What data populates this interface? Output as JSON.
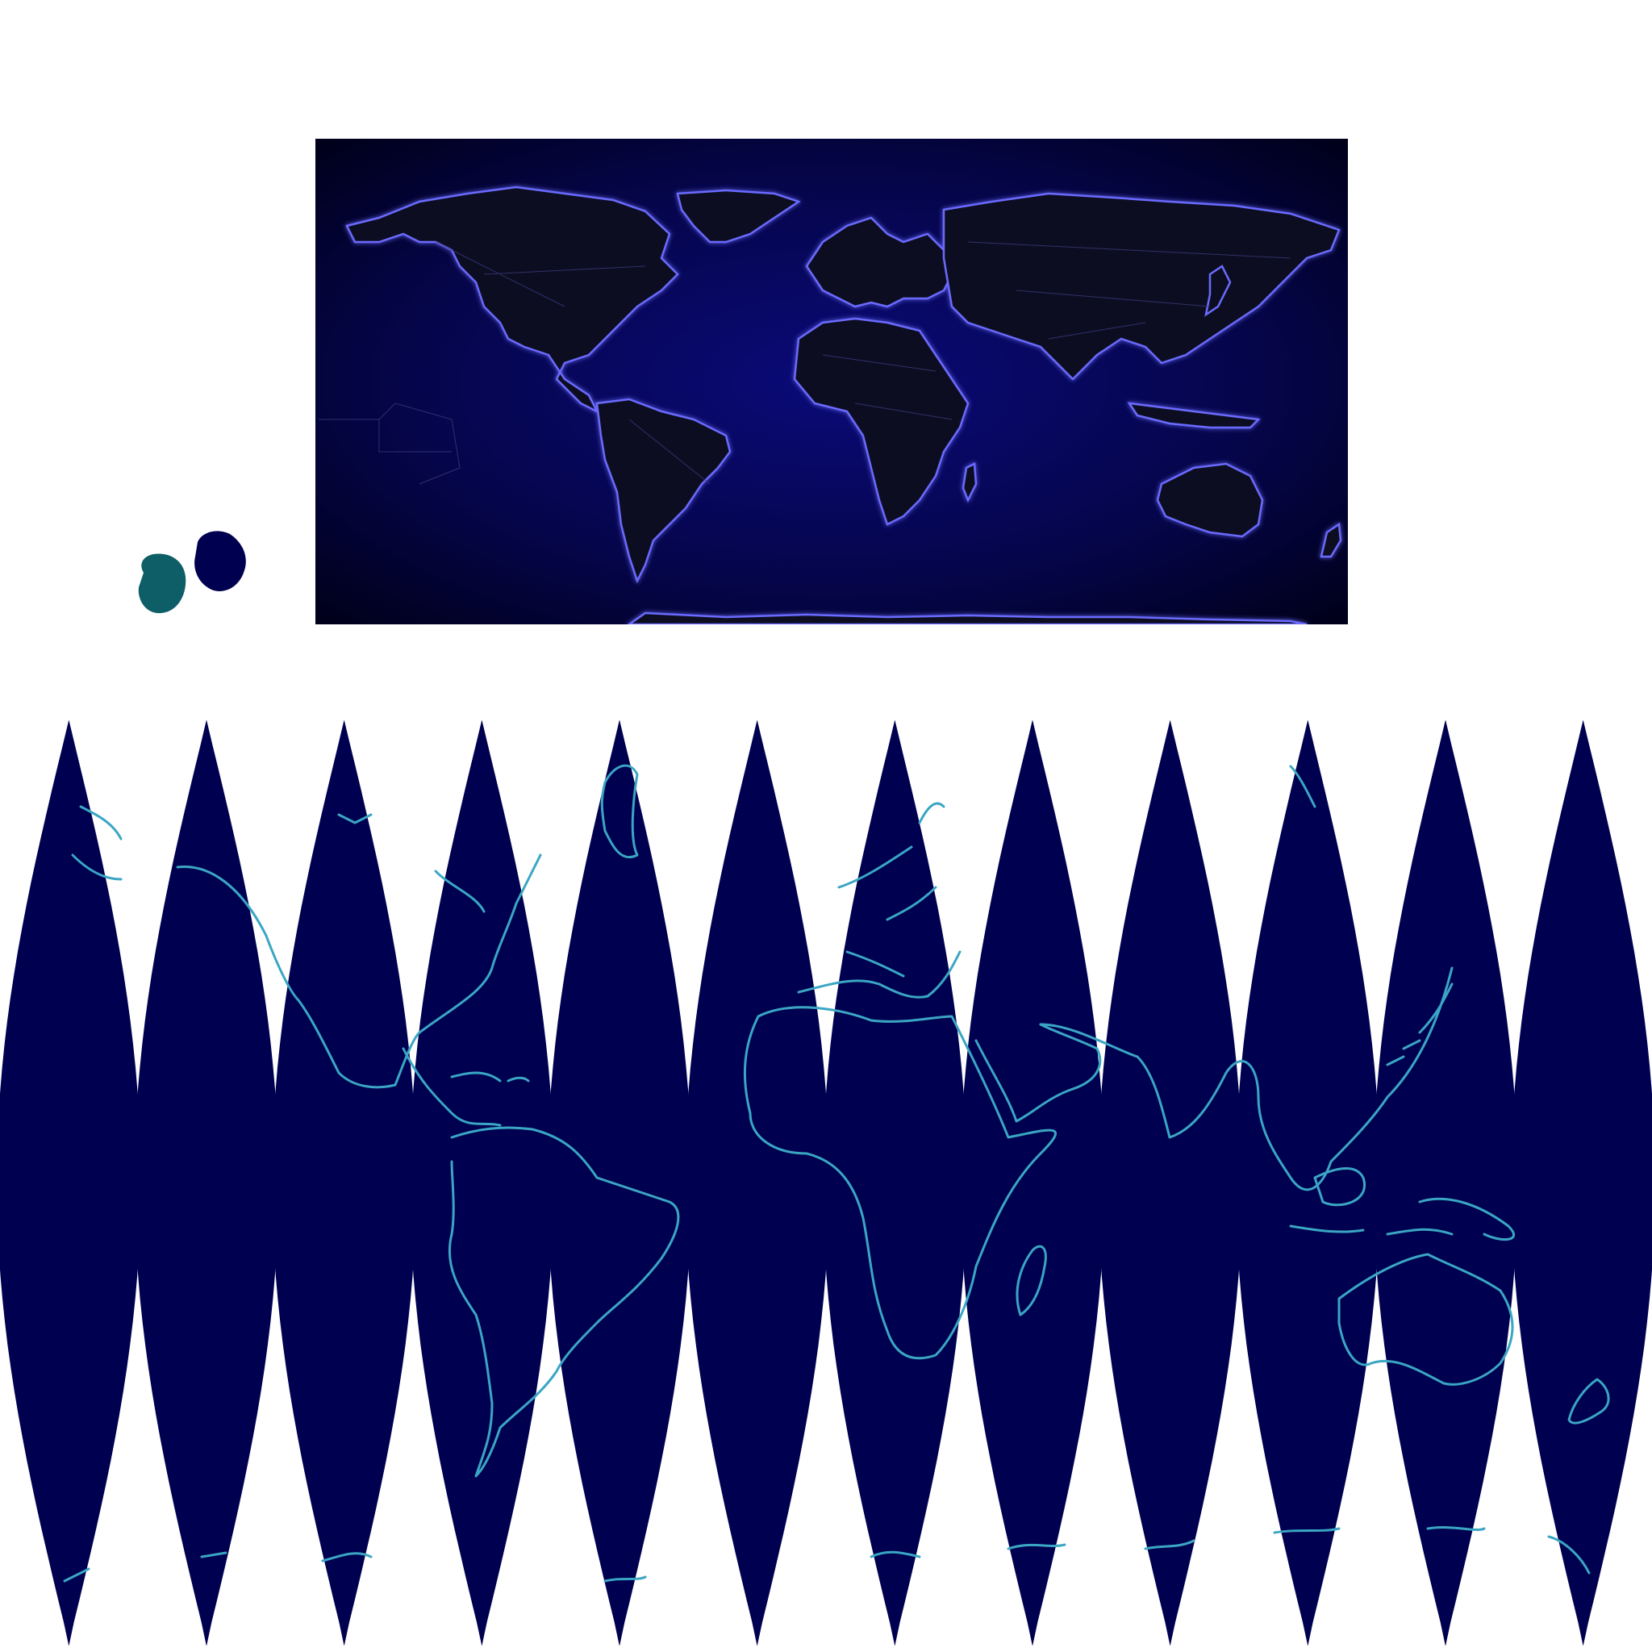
{
  "colors": {
    "page_bg": "#ffffff",
    "map_bg_dark": "#000014",
    "ocean_glow": "#0a0a6e",
    "land_fill": "#111120",
    "coast_glow": "#5e5eff",
    "border_line": "#3a3a7a",
    "gore_fill": "#000050",
    "gore_coast": "#3aa6c4",
    "swatch_teal": "#0d5e66",
    "swatch_navy": "#000050"
  },
  "swatches": [
    {
      "name": "teal-swatch",
      "color": "#0d5e66"
    },
    {
      "name": "navy-swatch",
      "color": "#000050"
    }
  ],
  "flat_map": {
    "projection": "equirectangular",
    "style": "neon-glow",
    "continents": [
      "north-america",
      "south-america",
      "greenland",
      "europe",
      "africa",
      "asia",
      "australia",
      "antarctica"
    ]
  },
  "gore_map": {
    "projection": "interrupted-sinusoidal-gores",
    "gore_count": 12,
    "style": "navy-fill-cyan-coast"
  }
}
